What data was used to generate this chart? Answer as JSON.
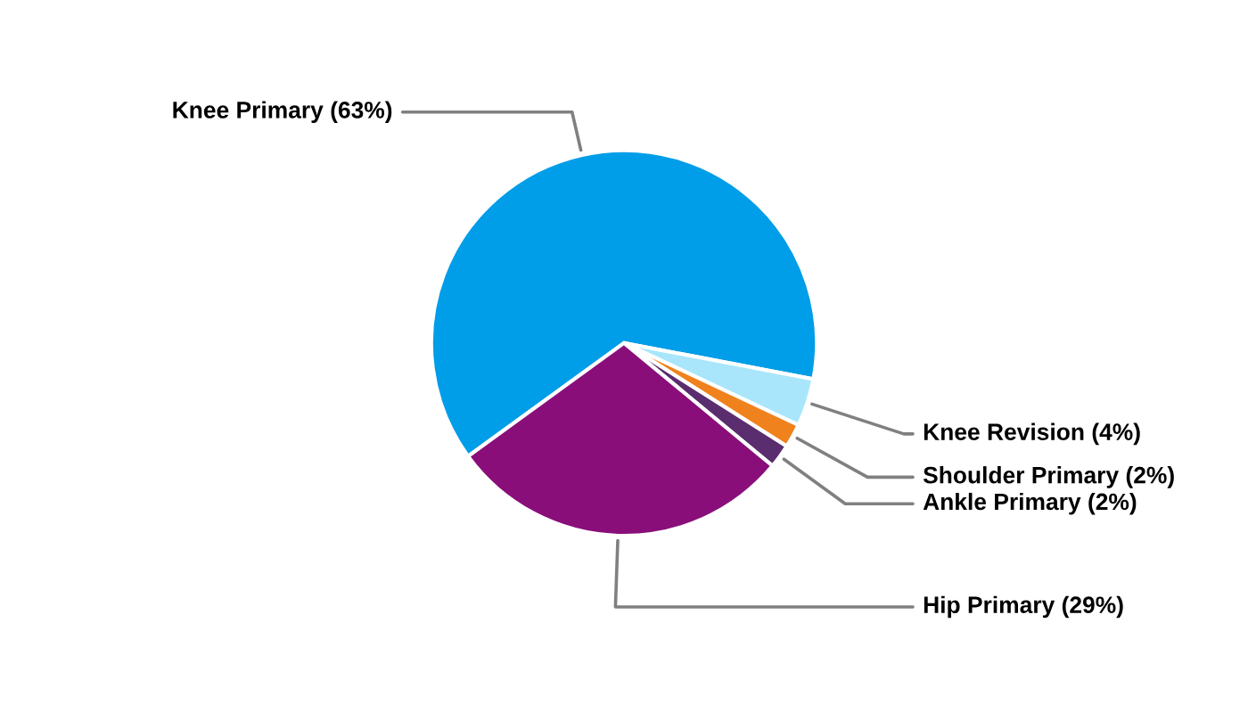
{
  "chart_data": {
    "type": "pie",
    "categories": [
      "Knee Primary (63%)",
      "Knee Revision (4%)",
      "Shoulder Primary (2%)",
      "Ankle Primary (2%)",
      "Hip Primary (29%)"
    ],
    "values": [
      63,
      4,
      2,
      2,
      29
    ],
    "colors": [
      "#009de8",
      "#a9e6fb",
      "#f0821e",
      "#5a2d6e",
      "#890e7a"
    ],
    "legend": false
  }
}
